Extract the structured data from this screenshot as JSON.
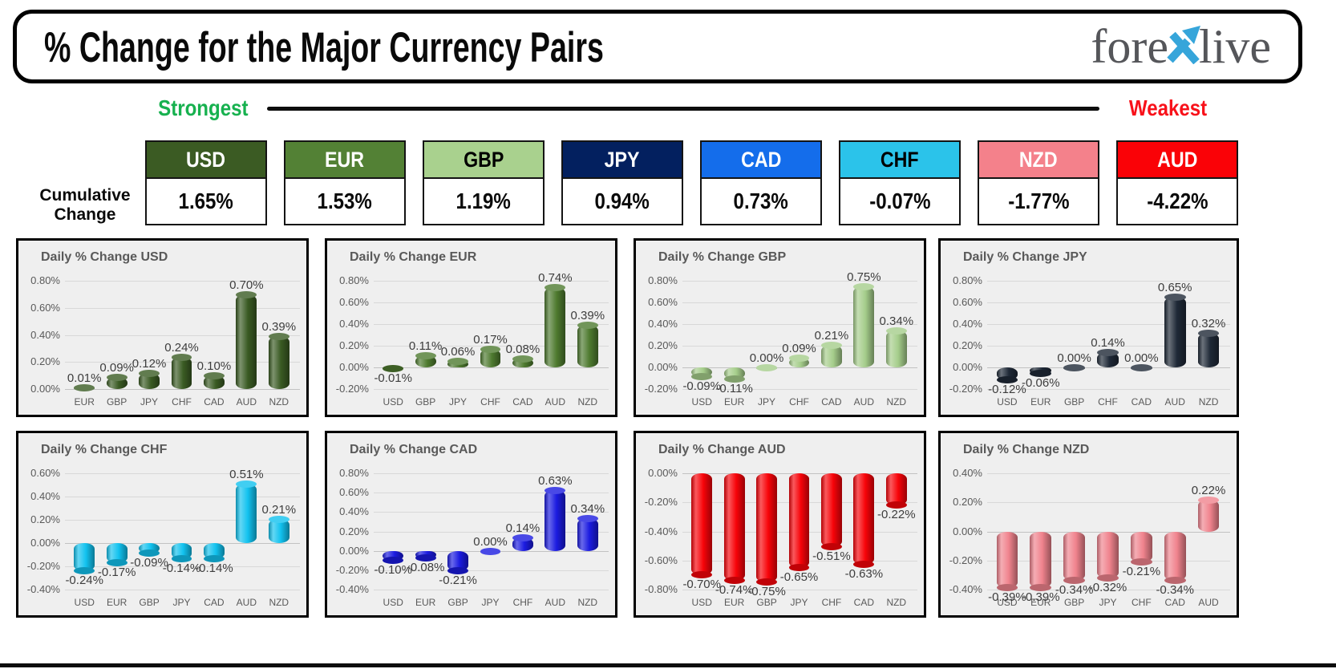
{
  "header": {
    "title": "% Change for the Major Currency Pairs",
    "logo": {
      "part1": "fore",
      "part2": "live",
      "x_color": "#36a5da",
      "text_color": "#55565a"
    }
  },
  "scale_bar": {
    "strongest": "Strongest",
    "weakest": "Weakest",
    "strongest_color": "#17b14f",
    "weakest_color": "#f8111a"
  },
  "cumulative": {
    "label_line1": "Cumulative",
    "label_line2": "Change",
    "items": [
      {
        "code": "USD",
        "value": "1.65%",
        "header_bg": "#3b5b23",
        "header_text": "#ffffff"
      },
      {
        "code": "EUR",
        "value": "1.53%",
        "header_bg": "#538135",
        "header_text": "#ffffff"
      },
      {
        "code": "GBP",
        "value": "1.19%",
        "header_bg": "#a9d18e",
        "header_text": "#000000"
      },
      {
        "code": "JPY",
        "value": "0.94%",
        "header_bg": "#03205f",
        "header_text": "#ffffff"
      },
      {
        "code": "CAD",
        "value": "0.73%",
        "header_bg": "#146deb",
        "header_text": "#ffffff"
      },
      {
        "code": "CHF",
        "value": "-0.07%",
        "header_bg": "#2bc3ea",
        "header_text": "#000000"
      },
      {
        "code": "NZD",
        "value": "-1.77%",
        "header_bg": "#f4818b",
        "header_text": "#ffffff"
      },
      {
        "code": "AUD",
        "value": "-4.22%",
        "header_bg": "#fa0207",
        "header_text": "#ffffff"
      }
    ]
  },
  "chart_data": [
    {
      "type": "bar",
      "title": "Daily % Change USD",
      "bar_color": "#3a5b23",
      "categories": [
        "EUR",
        "GBP",
        "JPY",
        "CHF",
        "CAD",
        "AUD",
        "NZD"
      ],
      "values": [
        0.01,
        0.09,
        0.12,
        0.24,
        0.1,
        0.7,
        0.39
      ],
      "data_labels": [
        "0.01%",
        "0.09%",
        "0.12%",
        "0.24%",
        "0.10%",
        "0.70%",
        "0.39%"
      ],
      "yticks": [
        0.8,
        0.6,
        0.4,
        0.2,
        0.0
      ],
      "ytick_labels": [
        "0.80%",
        "0.60%",
        "0.40%",
        "0.20%",
        "0.00%"
      ],
      "ylim": [
        0.0,
        0.8
      ],
      "xlabel": "",
      "ylabel": "",
      "grid": true,
      "legend": false
    },
    {
      "type": "bar",
      "title": "Daily % Change EUR",
      "bar_color": "#4e7a2f",
      "categories": [
        "USD",
        "GBP",
        "JPY",
        "CHF",
        "CAD",
        "AUD",
        "NZD"
      ],
      "values": [
        -0.01,
        0.11,
        0.06,
        0.17,
        0.08,
        0.74,
        0.39
      ],
      "data_labels": [
        "-0.01%",
        "0.11%",
        "0.06%",
        "0.17%",
        "0.08%",
        "0.74%",
        "0.39%"
      ],
      "yticks": [
        0.8,
        0.6,
        0.4,
        0.2,
        0.0,
        -0.2
      ],
      "ytick_labels": [
        "0.80%",
        "0.60%",
        "0.40%",
        "0.20%",
        "0.00%",
        "-0.20%"
      ],
      "ylim": [
        -0.2,
        0.8
      ],
      "xlabel": "",
      "ylabel": "",
      "grid": true,
      "legend": false
    },
    {
      "type": "bar",
      "title": "Daily % Change GBP",
      "bar_color": "#a5cd8b",
      "categories": [
        "USD",
        "EUR",
        "JPY",
        "CHF",
        "CAD",
        "AUD",
        "NZD"
      ],
      "values": [
        -0.09,
        -0.11,
        0.0,
        0.09,
        0.21,
        0.75,
        0.34
      ],
      "data_labels": [
        "-0.09%",
        "-0.11%",
        "0.00%",
        "0.09%",
        "0.21%",
        "0.75%",
        "0.34%"
      ],
      "yticks": [
        0.8,
        0.6,
        0.4,
        0.2,
        0.0,
        -0.2
      ],
      "ytick_labels": [
        "0.80%",
        "0.60%",
        "0.40%",
        "0.20%",
        "0.00%",
        "-0.20%"
      ],
      "ylim": [
        -0.2,
        0.8
      ],
      "xlabel": "",
      "ylabel": "",
      "grid": true,
      "legend": false
    },
    {
      "type": "bar",
      "title": "Daily % Change JPY",
      "bar_color": "#1f2937",
      "categories": [
        "USD",
        "EUR",
        "GBP",
        "CHF",
        "CAD",
        "AUD",
        "NZD"
      ],
      "values": [
        -0.12,
        -0.06,
        0.0,
        0.14,
        0.0,
        0.65,
        0.32
      ],
      "data_labels": [
        "-0.12%",
        "-0.06%",
        "0.00%",
        "0.14%",
        "0.00%",
        "0.65%",
        "0.32%"
      ],
      "yticks": [
        0.8,
        0.6,
        0.4,
        0.2,
        0.0,
        -0.2
      ],
      "ytick_labels": [
        "0.80%",
        "0.60%",
        "0.40%",
        "0.20%",
        "0.00%",
        "-0.20%"
      ],
      "ylim": [
        -0.2,
        0.8
      ],
      "xlabel": "",
      "ylabel": "",
      "grid": true,
      "legend": false
    },
    {
      "type": "bar",
      "title": "Daily % Change CHF",
      "bar_color": "#12c2ef",
      "categories": [
        "USD",
        "EUR",
        "GBP",
        "JPY",
        "CAD",
        "AUD",
        "NZD"
      ],
      "values": [
        -0.24,
        -0.17,
        -0.09,
        -0.14,
        -0.14,
        0.51,
        0.21
      ],
      "data_labels": [
        "-0.24%",
        "-0.17%",
        "-0.09%",
        "-0.14%",
        "-0.14%",
        "0.51%",
        "0.21%"
      ],
      "yticks": [
        0.6,
        0.4,
        0.2,
        0.0,
        -0.2,
        -0.4
      ],
      "ytick_labels": [
        "0.60%",
        "0.40%",
        "0.20%",
        "0.00%",
        "-0.20%",
        "-0.40%"
      ],
      "ylim": [
        -0.4,
        0.6
      ],
      "xlabel": "",
      "ylabel": "",
      "grid": true,
      "legend": false
    },
    {
      "type": "bar",
      "title": "Daily % Change CAD",
      "bar_color": "#1b1be0",
      "categories": [
        "USD",
        "EUR",
        "GBP",
        "JPY",
        "CHF",
        "AUD",
        "NZD"
      ],
      "values": [
        -0.1,
        -0.08,
        -0.21,
        0.0,
        0.14,
        0.63,
        0.34
      ],
      "data_labels": [
        "-0.10%",
        "-0.08%",
        "-0.21%",
        "0.00%",
        "0.14%",
        "0.63%",
        "0.34%"
      ],
      "yticks": [
        0.8,
        0.6,
        0.4,
        0.2,
        0.0,
        -0.2,
        -0.4
      ],
      "ytick_labels": [
        "0.80%",
        "0.60%",
        "0.40%",
        "0.20%",
        "0.00%",
        "-0.20%",
        "-0.40%"
      ],
      "ylim": [
        -0.4,
        0.8
      ],
      "xlabel": "",
      "ylabel": "",
      "grid": true,
      "legend": false
    },
    {
      "type": "bar",
      "title": "Daily % Change AUD",
      "bar_color": "#f70309",
      "categories": [
        "USD",
        "EUR",
        "GBP",
        "JPY",
        "CHF",
        "CAD",
        "NZD"
      ],
      "values": [
        -0.7,
        -0.74,
        -0.75,
        -0.65,
        -0.51,
        -0.63,
        -0.22
      ],
      "data_labels": [
        "-0.70%",
        "-0.74%",
        "-0.75%",
        "-0.65%",
        "-0.51%",
        "-0.63%",
        "-0.22%"
      ],
      "yticks": [
        0.0,
        -0.2,
        -0.4,
        -0.6,
        -0.8
      ],
      "ytick_labels": [
        "0.00%",
        "-0.20%",
        "-0.40%",
        "-0.60%",
        "-0.80%"
      ],
      "ylim": [
        -0.8,
        0.0
      ],
      "xlabel": "",
      "ylabel": "",
      "grid": true,
      "legend": false
    },
    {
      "type": "bar",
      "title": "Daily % Change NZD",
      "bar_color": "#f0838d",
      "categories": [
        "USD",
        "EUR",
        "GBP",
        "JPY",
        "CHF",
        "CAD",
        "AUD"
      ],
      "values": [
        -0.39,
        -0.39,
        -0.34,
        -0.32,
        -0.21,
        -0.34,
        0.22
      ],
      "data_labels": [
        "-0.39%",
        "-0.39%",
        "-0.34%",
        "-0.32%",
        "-0.21%",
        "-0.34%",
        "0.22%"
      ],
      "yticks": [
        0.4,
        0.2,
        0.0,
        -0.2,
        -0.4
      ],
      "ytick_labels": [
        "0.40%",
        "0.20%",
        "0.00%",
        "-0.20%",
        "-0.40%"
      ],
      "ylim": [
        -0.4,
        0.4
      ],
      "xlabel": "",
      "ylabel": "",
      "grid": true,
      "legend": false
    }
  ]
}
